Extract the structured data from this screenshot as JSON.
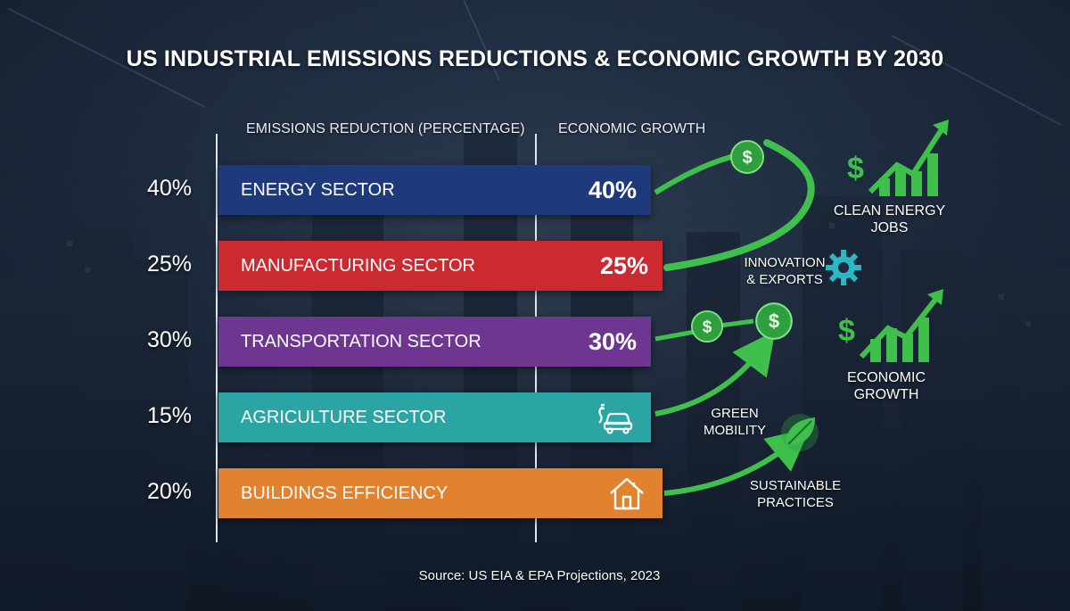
{
  "title": "US INDUSTRIAL EMISSIONS REDUCTIONS & ECONOMIC GROWTH BY 2030",
  "column_headers": {
    "left": "EMISSIONS REDUCTION (PERCENTAGE)",
    "right": "ECONOMIC GROWTH"
  },
  "chart_data": {
    "type": "bar",
    "orientation": "horizontal",
    "categories": [
      "ENERGY SECTOR",
      "MANUFACTURING SECTOR",
      "TRANSPORTATION SECTOR",
      "AGRICULTURE SECTOR",
      "BUILDINGS EFFICIENCY"
    ],
    "values": [
      40,
      25,
      30,
      15,
      20
    ],
    "value_labels": [
      "40%",
      "25%",
      "30%",
      "15%",
      "20%"
    ],
    "bar_value_labels": [
      "40%",
      "25%",
      "30%",
      "",
      ""
    ],
    "bar_icons": [
      "",
      "",
      "",
      "electric-car-icon",
      "house-icon"
    ],
    "colors": [
      "#1e3a7a",
      "#cc2a31",
      "#6e3591",
      "#2aa5a4",
      "#e1822e"
    ],
    "title": "US INDUSTRIAL EMISSIONS REDUCTIONS & ECONOMIC GROWTH BY 2030",
    "xlabel": "EMISSIONS REDUCTION (PERCENTAGE)",
    "ylabel": "",
    "legend": "none",
    "grid": false
  },
  "growth_labels": {
    "clean_energy_jobs": "CLEAN ENERGY JOBS",
    "innovation_line1": "INNOVATION",
    "innovation_line2": "& EXPORTS",
    "economic_growth": "ECONOMIC GROWTH",
    "green_line1": "GREEN",
    "green_line2": "MOBILITY",
    "sustainable_line1": "SUSTAINABLE",
    "sustainable_line2": "PRACTICES"
  },
  "icons": {
    "dollar": "$",
    "coin": "dollar-coin-icon",
    "gear": "gear-icon",
    "leaf": "leaf-icon",
    "growth_chart": "growth-chart-icon"
  },
  "accent_colors": {
    "growth_green": "#3fbf4c",
    "coin_green": "#2f9e3e",
    "gear_teal": "#2cb6c6"
  },
  "source": "Source: US EIA & EPA Projections, 2023"
}
